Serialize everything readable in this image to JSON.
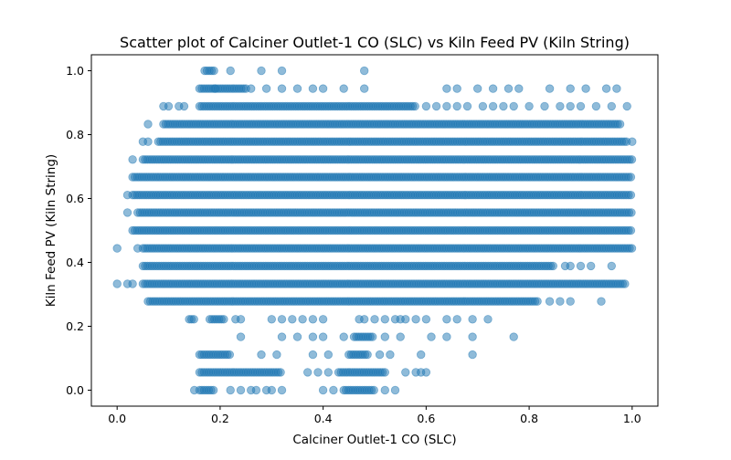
{
  "chart_data": {
    "type": "scatter",
    "title": "Scatter plot of Calciner Outlet-1 CO (SLC) vs Kiln Feed PV (Kiln String)",
    "xlabel": "Calciner Outlet-1 CO (SLC)",
    "ylabel": "Kiln Feed PV (Kiln String)",
    "xlim": [
      -0.05,
      1.05
    ],
    "ylim": [
      -0.05,
      1.05
    ],
    "xticks": [
      0.0,
      0.2,
      0.4,
      0.6,
      0.8,
      1.0
    ],
    "yticks": [
      0.0,
      0.2,
      0.4,
      0.6,
      0.8,
      1.0
    ],
    "xtick_labels": [
      "0.0",
      "0.2",
      "0.4",
      "0.6",
      "0.8",
      "1.0"
    ],
    "ytick_labels": [
      "0.0",
      "0.2",
      "0.4",
      "0.6",
      "0.8",
      "1.0"
    ],
    "grid": false,
    "marker_color": "#1f77b4",
    "marker_alpha": 0.5,
    "series": [
      {
        "bands": [
          {
            "y": 1.0,
            "runs": [
              [
                0.17,
                0.19
              ]
            ],
            "points": [
              0.22,
              0.28,
              0.32,
              0.48
            ]
          },
          {
            "y": 0.944,
            "runs": [
              [
                0.16,
                0.25
              ]
            ],
            "points": [
              0.19,
              0.26,
              0.29,
              0.32,
              0.35,
              0.38,
              0.4,
              0.44,
              0.48,
              0.64,
              0.66,
              0.7,
              0.73,
              0.76,
              0.78,
              0.84,
              0.88,
              0.91,
              0.95,
              0.97
            ]
          },
          {
            "y": 0.889,
            "runs": [
              [
                0.16,
                0.58
              ]
            ],
            "points": [
              0.09,
              0.1,
              0.12,
              0.13,
              0.6,
              0.62,
              0.64,
              0.66,
              0.68,
              0.71,
              0.73,
              0.75,
              0.77,
              0.8,
              0.83,
              0.86,
              0.88,
              0.9,
              0.93,
              0.96,
              0.99
            ]
          },
          {
            "y": 0.833,
            "runs": [
              [
                0.09,
                0.98
              ]
            ],
            "points": [
              0.06
            ]
          },
          {
            "y": 0.778,
            "runs": [
              [
                0.08,
                0.99
              ]
            ],
            "points": [
              0.05,
              0.06,
              1.0
            ]
          },
          {
            "y": 0.722,
            "runs": [
              [
                0.05,
                1.0
              ]
            ],
            "points": [
              0.03
            ]
          },
          {
            "y": 0.667,
            "runs": [
              [
                0.03,
                1.0
              ]
            ],
            "points": []
          },
          {
            "y": 0.611,
            "runs": [
              [
                0.03,
                1.0
              ]
            ],
            "points": [
              0.02
            ]
          },
          {
            "y": 0.556,
            "runs": [
              [
                0.04,
                1.0
              ]
            ],
            "points": [
              0.02
            ]
          },
          {
            "y": 0.5,
            "runs": [
              [
                0.03,
                1.0
              ]
            ],
            "points": []
          },
          {
            "y": 0.444,
            "runs": [
              [
                0.05,
                1.0
              ]
            ],
            "points": [
              0.0,
              0.04
            ]
          },
          {
            "y": 0.389,
            "runs": [
              [
                0.05,
                0.85
              ]
            ],
            "points": [
              0.87,
              0.88,
              0.9,
              0.92,
              0.96
            ]
          },
          {
            "y": 0.333,
            "runs": [
              [
                0.05,
                0.99
              ]
            ],
            "points": [
              0.0,
              0.02,
              0.03
            ]
          },
          {
            "y": 0.278,
            "runs": [
              [
                0.06,
                0.82
              ]
            ],
            "points": [
              0.84,
              0.86,
              0.88,
              0.94
            ]
          },
          {
            "y": 0.222,
            "runs": [
              [
                0.14,
                0.15
              ],
              [
                0.18,
                0.21
              ]
            ],
            "points": [
              0.23,
              0.24,
              0.3,
              0.32,
              0.34,
              0.36,
              0.38,
              0.4,
              0.47,
              0.48,
              0.5,
              0.52,
              0.54,
              0.55,
              0.56,
              0.58,
              0.6,
              0.64,
              0.66,
              0.69,
              0.72
            ]
          },
          {
            "y": 0.167,
            "runs": [
              [
                0.46,
                0.5
              ]
            ],
            "points": [
              0.24,
              0.32,
              0.35,
              0.38,
              0.4,
              0.44,
              0.52,
              0.55,
              0.61,
              0.64,
              0.69,
              0.77
            ]
          },
          {
            "y": 0.111,
            "runs": [
              [
                0.16,
                0.22
              ],
              [
                0.45,
                0.49
              ]
            ],
            "points": [
              0.28,
              0.31,
              0.38,
              0.41,
              0.51,
              0.53,
              0.59,
              0.69
            ]
          },
          {
            "y": 0.056,
            "runs": [
              [
                0.16,
                0.32
              ],
              [
                0.43,
                0.52
              ]
            ],
            "points": [
              0.37,
              0.39,
              0.41,
              0.56,
              0.58,
              0.59,
              0.6
            ]
          },
          {
            "y": 0.0,
            "runs": [
              [
                0.16,
                0.19
              ],
              [
                0.44,
                0.5
              ]
            ],
            "points": [
              0.15,
              0.22,
              0.24,
              0.26,
              0.27,
              0.29,
              0.3,
              0.32,
              0.4,
              0.42,
              0.52,
              0.54
            ]
          }
        ]
      }
    ]
  }
}
